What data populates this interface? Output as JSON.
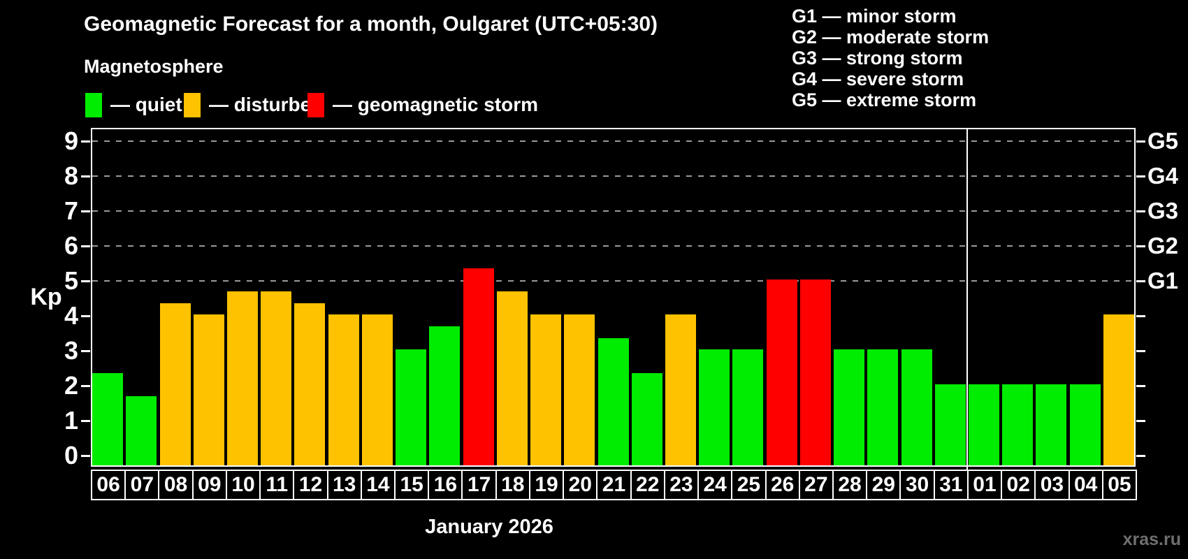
{
  "header": {
    "title": "Geomagnetic Forecast for a month, Oulgaret (UTC+05:30)",
    "subtitle": "Magnetosphere"
  },
  "legend": {
    "items": [
      {
        "name": "quiet",
        "label": "— quiet",
        "color": "#00ec00",
        "x": 0
      },
      {
        "name": "disturbed",
        "label": "— disturbed",
        "color": "#ffc200",
        "x": 141
      },
      {
        "name": "storm",
        "label": "— geomagnetic storm",
        "color": "#ff0000",
        "x": 318
      }
    ]
  },
  "g_scale_legend": {
    "lines": [
      "G1 — minor storm",
      "G2 — moderate storm",
      "G3 — strong storm",
      "G4 — severe storm",
      "G5 — extreme storm"
    ]
  },
  "watermark": "xras.ru",
  "chart_data": {
    "type": "bar",
    "title": "Geomagnetic Forecast for a month, Oulgaret (UTC+05:30)",
    "xlabel": "January 2026",
    "ylabel": "Kp",
    "ylim": [
      0,
      9
    ],
    "y_ticks": [
      0,
      1,
      2,
      3,
      4,
      5,
      6,
      7,
      8,
      9
    ],
    "grid": "dashed horizontal gridlines at Kp 5..9 (G1..G5 levels)",
    "legend_position": "top-left",
    "right_axis": [
      {
        "label": "G1",
        "kp": 5
      },
      {
        "label": "G2",
        "kp": 6
      },
      {
        "label": "G3",
        "kp": 7
      },
      {
        "label": "G4",
        "kp": 8
      },
      {
        "label": "G5",
        "kp": 9
      }
    ],
    "categories": [
      "06",
      "07",
      "08",
      "09",
      "10",
      "11",
      "12",
      "13",
      "14",
      "15",
      "16",
      "17",
      "18",
      "19",
      "20",
      "21",
      "22",
      "23",
      "24",
      "25",
      "26",
      "27",
      "28",
      "29",
      "30",
      "31",
      "01",
      "02",
      "03",
      "04",
      "05"
    ],
    "values": [
      2.33,
      1.67,
      4.33,
      4,
      4.67,
      4.67,
      4.33,
      4,
      4,
      3,
      3.67,
      5.33,
      4.67,
      4,
      4,
      3.33,
      2.33,
      4,
      3,
      3,
      5,
      5,
      3,
      3,
      3,
      2,
      2,
      2,
      2,
      2,
      4
    ],
    "statuses": [
      "quiet",
      "quiet",
      "disturbed",
      "disturbed",
      "disturbed",
      "disturbed",
      "disturbed",
      "disturbed",
      "disturbed",
      "quiet",
      "quiet",
      "storm",
      "disturbed",
      "disturbed",
      "disturbed",
      "quiet",
      "quiet",
      "disturbed",
      "quiet",
      "quiet",
      "storm",
      "storm",
      "quiet",
      "quiet",
      "quiet",
      "quiet",
      "quiet",
      "quiet",
      "quiet",
      "quiet",
      "disturbed"
    ],
    "status_colors": {
      "quiet": "#00ec00",
      "disturbed": "#ffc200",
      "storm": "#ff0000"
    },
    "month_separator_after_category": "31"
  }
}
